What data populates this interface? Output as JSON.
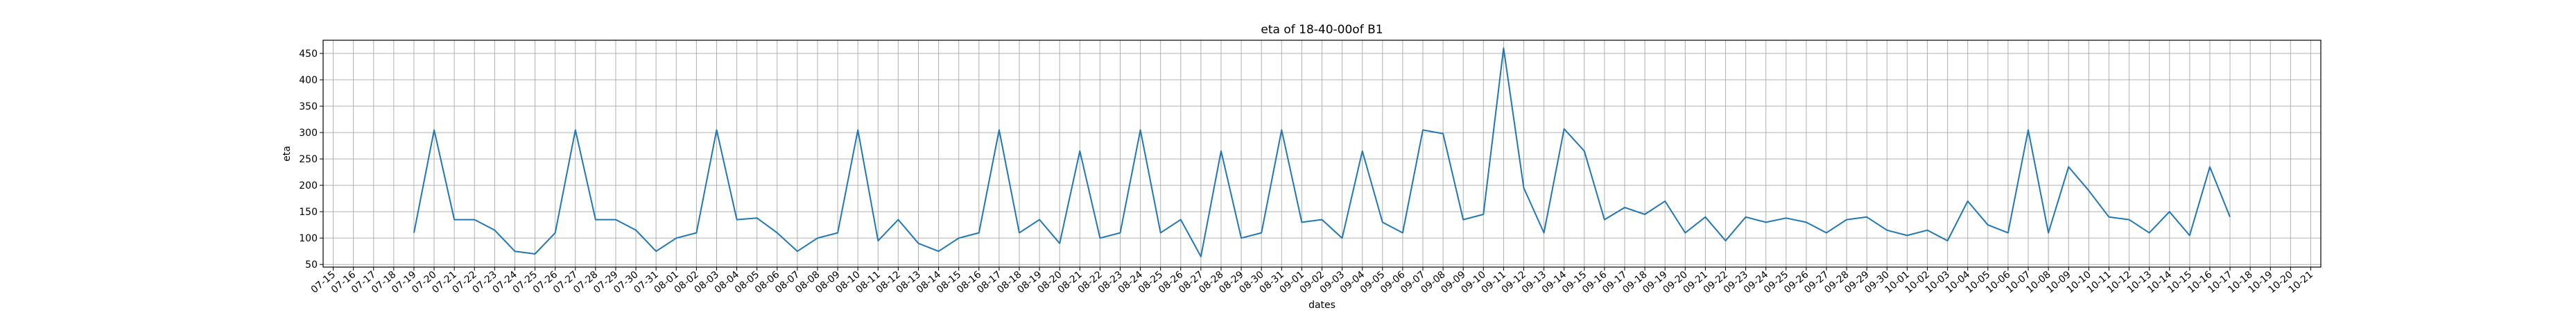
{
  "chart_data": {
    "type": "line",
    "title": "eta of 18-40-00of B1",
    "xlabel": "dates",
    "ylabel": "eta",
    "grid": true,
    "line_color": "#1f77b4",
    "ylim": [
      45,
      475
    ],
    "yticks": [
      50,
      100,
      150,
      200,
      250,
      300,
      350,
      400,
      450
    ],
    "x_categories": [
      "07-15",
      "07-16",
      "07-17",
      "07-18",
      "07-19",
      "07-20",
      "07-21",
      "07-22",
      "07-23",
      "07-24",
      "07-25",
      "07-26",
      "07-27",
      "07-28",
      "07-29",
      "07-30",
      "07-31",
      "08-01",
      "08-02",
      "08-03",
      "08-04",
      "08-05",
      "08-06",
      "08-07",
      "08-08",
      "08-09",
      "08-10",
      "08-11",
      "08-12",
      "08-13",
      "08-14",
      "08-15",
      "08-16",
      "08-17",
      "08-18",
      "08-19",
      "08-20",
      "08-21",
      "08-22",
      "08-23",
      "08-24",
      "08-25",
      "08-26",
      "08-27",
      "08-28",
      "08-29",
      "08-30",
      "08-31",
      "09-01",
      "09-02",
      "09-03",
      "09-04",
      "09-05",
      "09-06",
      "09-07",
      "09-08",
      "09-09",
      "09-10",
      "09-11",
      "09-12",
      "09-13",
      "09-14",
      "09-15",
      "09-16",
      "09-17",
      "09-18",
      "09-19",
      "09-20",
      "09-21",
      "09-22",
      "09-23",
      "09-24",
      "09-25",
      "09-26",
      "09-27",
      "09-28",
      "09-29",
      "09-30",
      "10-01",
      "10-02",
      "10-03",
      "10-04",
      "10-05",
      "10-06",
      "10-07",
      "10-08",
      "10-09",
      "10-10",
      "10-11",
      "10-12",
      "10-13",
      "10-14",
      "10-15",
      "10-16",
      "10-17",
      "10-18",
      "10-19",
      "10-20",
      "10-21"
    ],
    "series": [
      {
        "x": [
          "07-19",
          "07-20",
          "07-21",
          "07-22",
          "07-23",
          "07-24",
          "07-25",
          "07-26",
          "07-27",
          "07-28",
          "07-29",
          "07-30",
          "07-31",
          "08-01",
          "08-02",
          "08-03",
          "08-04",
          "08-05",
          "08-06",
          "08-07",
          "08-08",
          "08-09",
          "08-10",
          "08-11",
          "08-12",
          "08-13",
          "08-14",
          "08-15",
          "08-16",
          "08-17",
          "08-18",
          "08-19",
          "08-20",
          "08-21",
          "08-22",
          "08-23",
          "08-24",
          "08-25",
          "08-26",
          "08-27",
          "08-28",
          "08-29",
          "08-30",
          "08-31",
          "09-01",
          "09-02",
          "09-03",
          "09-04",
          "09-05",
          "09-06",
          "09-07",
          "09-08",
          "09-09",
          "09-10",
          "09-11",
          "09-12",
          "09-13",
          "09-14",
          "09-15",
          "09-16",
          "09-17",
          "09-18",
          "09-19",
          "09-20",
          "09-21",
          "09-22",
          "09-23",
          "09-24",
          "09-25",
          "09-26",
          "09-27",
          "09-28",
          "09-29",
          "09-30",
          "10-01",
          "10-02",
          "10-03",
          "10-04",
          "10-05",
          "10-06",
          "10-07",
          "10-08",
          "10-09",
          "10-10",
          "10-11",
          "10-12",
          "10-13",
          "10-14",
          "10-15",
          "10-16",
          "10-17"
        ],
        "values": [
          110,
          305,
          135,
          135,
          115,
          75,
          70,
          110,
          305,
          135,
          135,
          115,
          75,
          100,
          110,
          305,
          135,
          138,
          110,
          75,
          100,
          110,
          305,
          95,
          135,
          90,
          75,
          100,
          110,
          305,
          110,
          135,
          90,
          265,
          100,
          110,
          305,
          110,
          135,
          65,
          265,
          100,
          110,
          305,
          130,
          135,
          100,
          265,
          130,
          110,
          305,
          298,
          135,
          145,
          460,
          195,
          110,
          307,
          265,
          135,
          158,
          145,
          170,
          110,
          140,
          95,
          140,
          130,
          138,
          130,
          110,
          135,
          140,
          115,
          105,
          115,
          95,
          170,
          125,
          110,
          305,
          110,
          235,
          190,
          140,
          135,
          110,
          150,
          105,
          235,
          140
        ]
      }
    ]
  }
}
